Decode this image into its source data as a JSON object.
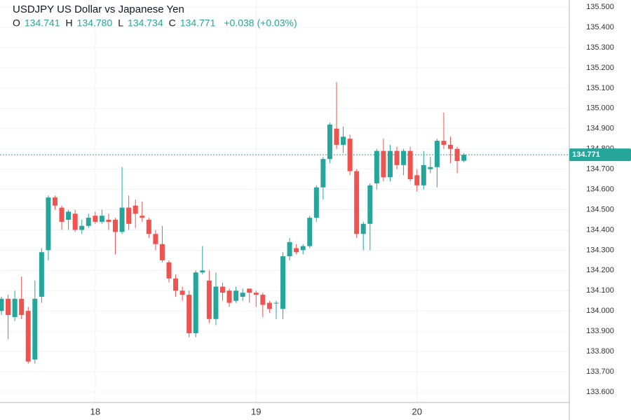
{
  "header": {
    "title": "USDJPY US Dollar vs Japanese Yen",
    "ohlc": [
      {
        "key": "O",
        "value": "134.741"
      },
      {
        "key": "H",
        "value": "134.780"
      },
      {
        "key": "L",
        "value": "134.734"
      },
      {
        "key": "C",
        "value": "134.771"
      }
    ],
    "change": "+0.038 (+0.03%)"
  },
  "chart_data": {
    "type": "candlestick",
    "categories": [
      null,
      null,
      null,
      null,
      null,
      null,
      null,
      null,
      null,
      null,
      null,
      null,
      null,
      null,
      "18",
      null,
      null,
      null,
      null,
      null,
      null,
      null,
      null,
      null,
      null,
      null,
      null,
      null,
      null,
      null,
      null,
      null,
      null,
      null,
      null,
      null,
      null,
      null,
      "19",
      null,
      null,
      null,
      null,
      null,
      null,
      null,
      null,
      null,
      null,
      null,
      null,
      null,
      null,
      null,
      null,
      null,
      null,
      null,
      null,
      null,
      null,
      null,
      "20",
      null,
      null,
      null,
      null,
      null,
      null,
      null
    ],
    "open": [
      134.0,
      134.06,
      133.97,
      134.06,
      134.0,
      133.76,
      134.07,
      134.3,
      134.56,
      134.51,
      134.45,
      134.48,
      134.4,
      134.42,
      134.47,
      134.44,
      134.45,
      134.45,
      134.39,
      134.51,
      134.52,
      134.47,
      134.45,
      134.38,
      134.33,
      134.24,
      134.16,
      134.1,
      134.08,
      133.89,
      134.19,
      134.15,
      133.96,
      134.12,
      134.1,
      134.05,
      134.07,
      134.11,
      134.09,
      134.08,
      134.04,
      134.04,
      134.01,
      134.27,
      134.31,
      134.3,
      134.32,
      134.46,
      134.61,
      134.75,
      134.9,
      134.82,
      134.85,
      134.69,
      134.38,
      134.43,
      134.63,
      134.79,
      134.66,
      134.79,
      134.72,
      134.79,
      134.67,
      134.62,
      134.7,
      134.71,
      134.84,
      134.82,
      134.8,
      134.741
    ],
    "high": [
      134.07,
      134.08,
      134.1,
      134.17,
      134.02,
      134.15,
      134.31,
      134.57,
      134.57,
      134.52,
      134.5,
      134.5,
      134.45,
      134.48,
      134.49,
      134.5,
      134.48,
      134.46,
      134.71,
      134.57,
      134.55,
      134.54,
      134.46,
      134.4,
      134.42,
      134.25,
      134.18,
      134.12,
      134.1,
      134.2,
      134.32,
      134.2,
      134.19,
      134.14,
      134.11,
      134.12,
      134.11,
      134.11,
      134.1,
      134.09,
      134.05,
      134.05,
      134.29,
      134.36,
      134.33,
      134.33,
      134.47,
      134.62,
      134.76,
      134.93,
      135.13,
      134.91,
      134.87,
      134.7,
      134.44,
      134.63,
      134.8,
      134.85,
      134.82,
      134.81,
      134.8,
      134.81,
      134.7,
      134.79,
      134.76,
      134.85,
      134.98,
      134.86,
      134.81,
      134.78
    ],
    "low": [
      133.98,
      133.86,
      133.95,
      133.96,
      133.74,
      133.74,
      134.04,
      134.25,
      134.5,
      134.4,
      134.4,
      134.39,
      134.38,
      134.41,
      134.43,
      134.43,
      134.4,
      134.28,
      134.38,
      134.4,
      134.41,
      134.44,
      134.36,
      134.3,
      134.24,
      134.14,
      134.07,
      134.05,
      133.87,
      133.87,
      134.18,
      133.94,
      133.93,
      134.05,
      134.02,
      134.04,
      134.05,
      134.04,
      134.02,
      133.97,
      133.99,
      133.96,
      133.96,
      134.25,
      134.28,
      134.28,
      134.31,
      134.44,
      134.55,
      134.73,
      134.8,
      134.78,
      134.67,
      134.36,
      134.3,
      134.3,
      134.6,
      134.64,
      134.64,
      134.7,
      134.67,
      134.64,
      134.59,
      134.6,
      134.68,
      134.61,
      134.8,
      134.73,
      134.68,
      134.734
    ],
    "close": [
      134.06,
      133.98,
      134.06,
      133.98,
      133.75,
      134.06,
      134.29,
      134.56,
      134.52,
      134.44,
      134.49,
      134.4,
      134.42,
      134.46,
      134.44,
      134.47,
      134.44,
      134.39,
      134.51,
      134.43,
      134.48,
      134.46,
      134.38,
      134.33,
      134.25,
      134.16,
      134.1,
      134.08,
      133.89,
      134.19,
      134.2,
      133.96,
      134.12,
      134.09,
      134.04,
      134.1,
      134.09,
      134.09,
      134.08,
      134.03,
      134.01,
      134.04,
      134.27,
      134.34,
      134.29,
      134.32,
      134.46,
      134.61,
      134.75,
      134.92,
      134.82,
      134.86,
      134.69,
      134.38,
      134.43,
      134.62,
      134.79,
      134.66,
      134.79,
      134.72,
      134.79,
      134.65,
      134.62,
      134.72,
      134.71,
      134.84,
      134.82,
      134.8,
      134.74,
      134.771
    ],
    "up_color": "#26a69a",
    "down_color": "#ef5350",
    "ylim": [
      133.548,
      135.535
    ],
    "yticks": [
      {
        "value": 135.5,
        "label": "135.500"
      },
      {
        "value": 135.4,
        "label": "135.400"
      },
      {
        "value": 135.3,
        "label": "135.300"
      },
      {
        "value": 135.2,
        "label": "135.200"
      },
      {
        "value": 135.1,
        "label": "135.100"
      },
      {
        "value": 135.0,
        "label": "135.000"
      },
      {
        "value": 134.9,
        "label": "134.900"
      },
      {
        "value": 134.8,
        "label": "134.800"
      },
      {
        "value": 134.7,
        "label": "134.700"
      },
      {
        "value": 134.6,
        "label": "134.600"
      },
      {
        "value": 134.5,
        "label": "134.500"
      },
      {
        "value": 134.4,
        "label": "134.400"
      },
      {
        "value": 134.3,
        "label": "134.300"
      },
      {
        "value": 134.2,
        "label": "134.200"
      },
      {
        "value": 134.1,
        "label": "134.100"
      },
      {
        "value": 134.0,
        "label": "134.000"
      },
      {
        "value": 133.9,
        "label": "133.900"
      },
      {
        "value": 133.8,
        "label": "133.800"
      },
      {
        "value": 133.7,
        "label": "133.700"
      },
      {
        "value": 133.6,
        "label": "133.600"
      }
    ],
    "grid": true
  }
}
